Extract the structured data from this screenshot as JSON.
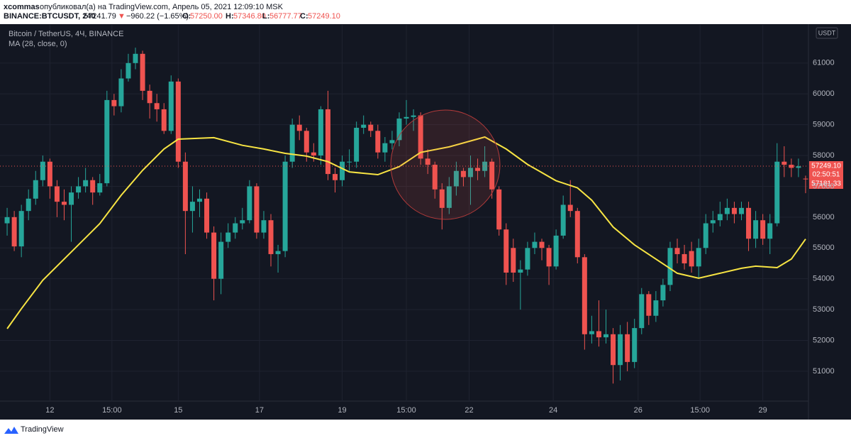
{
  "header": {
    "user": "xcommas",
    "published": "опубликовал(а) на TradingView.com, Апрель 05, 2021 12:09:10 MSK",
    "symbol": "BINANCE:BTCUSDT, 240",
    "last": "57241.79",
    "arrow": "▼",
    "change": "−960.22 (−1.65%)",
    "o_label": "O:",
    "o": "57250.00",
    "h_label": "H:",
    "h": "57346.80",
    "l_label": "L:",
    "l": "56777.77",
    "c_label": "C:",
    "c": "57249.10"
  },
  "price_tags": [
    "57249.10",
    "02:50:51",
    "57181.33"
  ],
  "currency": "USDT",
  "brand": "TradingView",
  "chart_data": {
    "type": "candlestick",
    "title": "Bitcoin / TetherUS, 4Ч, BINANCE",
    "up_color": "#26a69a",
    "down_color": "#ef5350",
    "grid": true,
    "open": [
      55800,
      56000,
      55050,
      56200,
      56600,
      57200,
      57800,
      57000,
      56500,
      56400,
      56800,
      57000,
      57200,
      56800,
      57100,
      59800,
      59600,
      60500,
      61000,
      61300,
      60100,
      59700,
      59500,
      58800,
      60400,
      57800,
      56200,
      56500,
      56600,
      55500,
      54000,
      55200,
      55500,
      55800,
      55900,
      57000,
      55500,
      55900,
      54800,
      54900,
      57800,
      59000,
      58800,
      58100,
      58000,
      59500,
      57400,
      57200,
      57800,
      57800,
      58900,
      59000,
      58800,
      58100,
      58400,
      58500,
      59200,
      59250,
      59300,
      57900,
      57700,
      56900,
      56300,
      57000,
      57500,
      57300,
      57600,
      57500,
      57800,
      56900,
      55600,
      55000,
      54200,
      54300,
      55000,
      55200,
      55000,
      54400,
      55400,
      56400,
      56200,
      54700,
      52200,
      52300,
      52100,
      52200,
      51200,
      52200,
      51300,
      52400,
      53500,
      52800,
      53300,
      53800,
      55000,
      54800,
      54900,
      54400,
      55000,
      55800,
      55900,
      56100,
      56300,
      56100,
      56300,
      55300,
      55900,
      55300,
      55800,
      57800,
      57700,
      57600,
      57250
    ],
    "high": [
      56300,
      56200,
      56400,
      56900,
      57500,
      58000,
      57900,
      57200,
      56900,
      57000,
      57300,
      57600,
      57300,
      57400,
      60100,
      60000,
      60800,
      61300,
      61500,
      61400,
      60300,
      60000,
      59700,
      60600,
      60500,
      58100,
      57000,
      56900,
      56800,
      55700,
      55500,
      55800,
      56000,
      56300,
      57200,
      57100,
      56200,
      56100,
      55100,
      58000,
      59200,
      59300,
      58900,
      58400,
      59600,
      60100,
      57600,
      58000,
      58200,
      59100,
      59300,
      59100,
      59000,
      58600,
      58800,
      59400,
      59800,
      59500,
      59400,
      58200,
      57800,
      57100,
      57300,
      57800,
      57600,
      58000,
      57900,
      58300,
      57900,
      57000,
      55800,
      55300,
      54600,
      55200,
      55500,
      55300,
      55100,
      55600,
      56700,
      57200,
      56300,
      54800,
      52800,
      53300,
      53000,
      52400,
      52500,
      52600,
      52700,
      53700,
      53600,
      53600,
      54000,
      55200,
      55300,
      55100,
      55200,
      55300,
      56100,
      56200,
      56500,
      56600,
      56500,
      56500,
      56500,
      56200,
      56100,
      56100,
      58400,
      58300,
      57900,
      57900,
      57346.8
    ],
    "low": [
      55400,
      54900,
      54700,
      55900,
      56400,
      57000,
      56600,
      56000,
      55900,
      55200,
      56600,
      56800,
      56400,
      56700,
      57000,
      59300,
      59400,
      60400,
      60800,
      59800,
      59200,
      59100,
      58700,
      58700,
      57600,
      54800,
      55500,
      56000,
      55300,
      53300,
      53500,
      55000,
      55300,
      55600,
      55800,
      55300,
      55300,
      54400,
      54200,
      54700,
      57600,
      58500,
      57800,
      57800,
      57700,
      57200,
      56800,
      57000,
      57500,
      57600,
      58700,
      58600,
      57900,
      57800,
      58200,
      58300,
      59000,
      58800,
      57700,
      57400,
      56600,
      55600,
      56100,
      56700,
      57000,
      56400,
      57200,
      57300,
      56600,
      55400,
      53800,
      53900,
      53000,
      54100,
      54800,
      54600,
      53800,
      54300,
      55300,
      56000,
      54500,
      51700,
      51900,
      51800,
      51900,
      50600,
      50700,
      51000,
      51100,
      52200,
      52500,
      52600,
      53100,
      53600,
      54500,
      54300,
      54200,
      54000,
      54800,
      55500,
      55700,
      55900,
      55800,
      55900,
      54900,
      55000,
      55100,
      54800,
      55700,
      57300,
      57300,
      57300,
      56777.77
    ],
    "close": [
      56000,
      55050,
      56200,
      56600,
      57200,
      57800,
      57000,
      56500,
      56400,
      56800,
      57000,
      57200,
      56800,
      57100,
      59800,
      59600,
      60500,
      61000,
      61300,
      60100,
      59700,
      59500,
      58800,
      60400,
      57800,
      56200,
      56500,
      56600,
      55500,
      54000,
      55200,
      55500,
      55800,
      55900,
      57000,
      55500,
      55900,
      54800,
      54900,
      57800,
      59000,
      58800,
      58100,
      58000,
      59500,
      57400,
      57200,
      57800,
      57800,
      58900,
      59000,
      58800,
      58100,
      58400,
      58500,
      59200,
      59250,
      59300,
      57900,
      57700,
      56900,
      56300,
      57000,
      57500,
      57300,
      57600,
      57500,
      57800,
      56900,
      55600,
      54200,
      54200,
      54300,
      55000,
      55200,
      55000,
      54400,
      55400,
      56400,
      56200,
      54700,
      52200,
      52300,
      52100,
      52200,
      51200,
      52200,
      51300,
      52400,
      53500,
      52800,
      53300,
      53800,
      55000,
      54800,
      54500,
      54400,
      55000,
      55800,
      55900,
      56100,
      56300,
      56100,
      56300,
      55300,
      55900,
      55300,
      55800,
      57800,
      57700,
      57600,
      57650,
      57249.1
    ],
    "series": [
      {
        "name": "MA (28, close, 0)",
        "color": "#f7e443",
        "x": [
          0,
          2,
          5,
          9,
          13,
          16,
          19,
          22,
          24,
          29,
          33,
          36,
          39,
          42,
          45,
          48,
          52,
          55,
          58,
          62,
          67,
          70,
          73,
          77,
          80,
          82,
          85,
          88,
          91,
          94,
          97,
          100,
          103,
          105,
          108,
          110,
          112
        ],
        "values": [
          52380,
          53030,
          53950,
          54870,
          55790,
          56710,
          57520,
          58210,
          58530,
          58580,
          58330,
          58210,
          58070,
          57980,
          57800,
          57470,
          57380,
          57640,
          58100,
          58280,
          58600,
          58210,
          57710,
          57180,
          56950,
          56550,
          55680,
          55100,
          54640,
          54180,
          54020,
          54180,
          54340,
          54410,
          54360,
          54640,
          55290
        ]
      }
    ],
    "xlim": [
      -1,
      112.4
    ],
    "xticks": [
      {
        "value": 6,
        "label": "12"
      },
      {
        "value": 14.7,
        "label": "15:00"
      },
      {
        "value": 24,
        "label": "15"
      },
      {
        "value": 35.4,
        "label": "17"
      },
      {
        "value": 47,
        "label": "19"
      },
      {
        "value": 56,
        "label": "15:00"
      },
      {
        "value": 64.8,
        "label": "22"
      },
      {
        "value": 76.6,
        "label": "24"
      },
      {
        "value": 88.5,
        "label": "26"
      },
      {
        "value": 97.2,
        "label": "15:00"
      },
      {
        "value": 106,
        "label": "29"
      }
    ],
    "ylim": [
      50030,
      62240
    ],
    "yticks": [
      51000,
      52000,
      53000,
      54000,
      55000,
      56000,
      57000,
      58000,
      59000,
      60000,
      61000
    ]
  }
}
